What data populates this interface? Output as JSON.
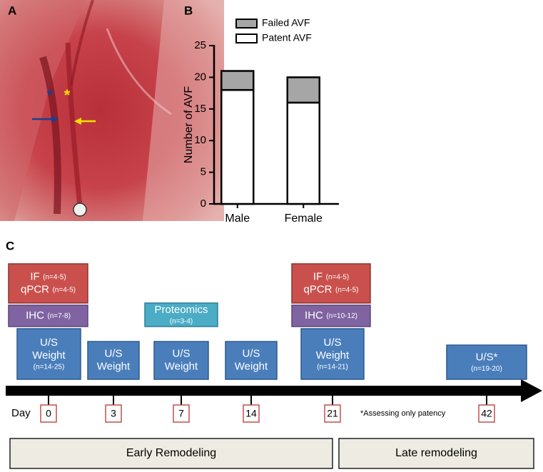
{
  "panel_labels": [
    "A",
    "B",
    "C"
  ],
  "photo": {
    "asterisks": [
      "*",
      "*"
    ]
  },
  "chart_data": {
    "type": "bar",
    "stacked": true,
    "ylabel": "Number of AVF",
    "categories": [
      "Male",
      "Female"
    ],
    "series": [
      {
        "name": "Patent AVF",
        "color": "#ffffff",
        "values": [
          18,
          16
        ]
      },
      {
        "name": "Failed AVF",
        "color": "#a6a6a6",
        "values": [
          3,
          4
        ]
      }
    ],
    "ylim": [
      0,
      25
    ],
    "yticks": [
      0,
      5,
      10,
      15,
      20,
      25
    ]
  },
  "timeline": {
    "day_label": "Day",
    "note": "*Assessing only patency",
    "days": [
      {
        "day": 0,
        "boxes": [
          {
            "kind": "assay",
            "lines": [
              {
                "text": "IF",
                "n": "(n=4-5)"
              },
              {
                "text": "qPCR",
                "n": "(n=4-5)"
              }
            ]
          },
          {
            "kind": "ihc",
            "lines": [
              {
                "text": "IHC",
                "n": "(n=7-8)"
              }
            ]
          },
          {
            "kind": "imaging",
            "lines": [
              {
                "text": "U/S"
              },
              {
                "text": "Weight"
              },
              {
                "n": "(n=14-25)"
              }
            ]
          }
        ]
      },
      {
        "day": 3,
        "boxes": [
          {
            "kind": "imaging",
            "lines": [
              {
                "text": "U/S"
              },
              {
                "text": "Weight"
              }
            ]
          }
        ]
      },
      {
        "day": 7,
        "boxes": [
          {
            "kind": "proteomics",
            "lines": [
              {
                "text": "Proteomics"
              },
              {
                "n": "(n=3-4)"
              }
            ]
          },
          {
            "kind": "imaging",
            "lines": [
              {
                "text": "U/S"
              },
              {
                "text": "Weight"
              }
            ]
          }
        ]
      },
      {
        "day": 14,
        "boxes": [
          {
            "kind": "imaging",
            "lines": [
              {
                "text": "U/S"
              },
              {
                "text": "Weight"
              }
            ]
          }
        ]
      },
      {
        "day": 21,
        "boxes": [
          {
            "kind": "assay",
            "lines": [
              {
                "text": "IF",
                "n": "(n=4-5)"
              },
              {
                "text": "qPCR",
                "n": "(n=4-5)"
              }
            ]
          },
          {
            "kind": "ihc",
            "lines": [
              {
                "text": "IHC",
                "n": "(n=10-12)"
              }
            ]
          },
          {
            "kind": "imaging",
            "lines": [
              {
                "text": "U/S"
              },
              {
                "text": "Weight"
              },
              {
                "n": "(n=14-21)"
              }
            ]
          }
        ]
      },
      {
        "day": 42,
        "boxes": [
          {
            "kind": "imaging",
            "lines": [
              {
                "text": "U/S*"
              },
              {
                "n": "(n=19-20)"
              }
            ]
          }
        ]
      }
    ],
    "phases": [
      "Early Remodeling",
      "Late remodeling"
    ]
  }
}
